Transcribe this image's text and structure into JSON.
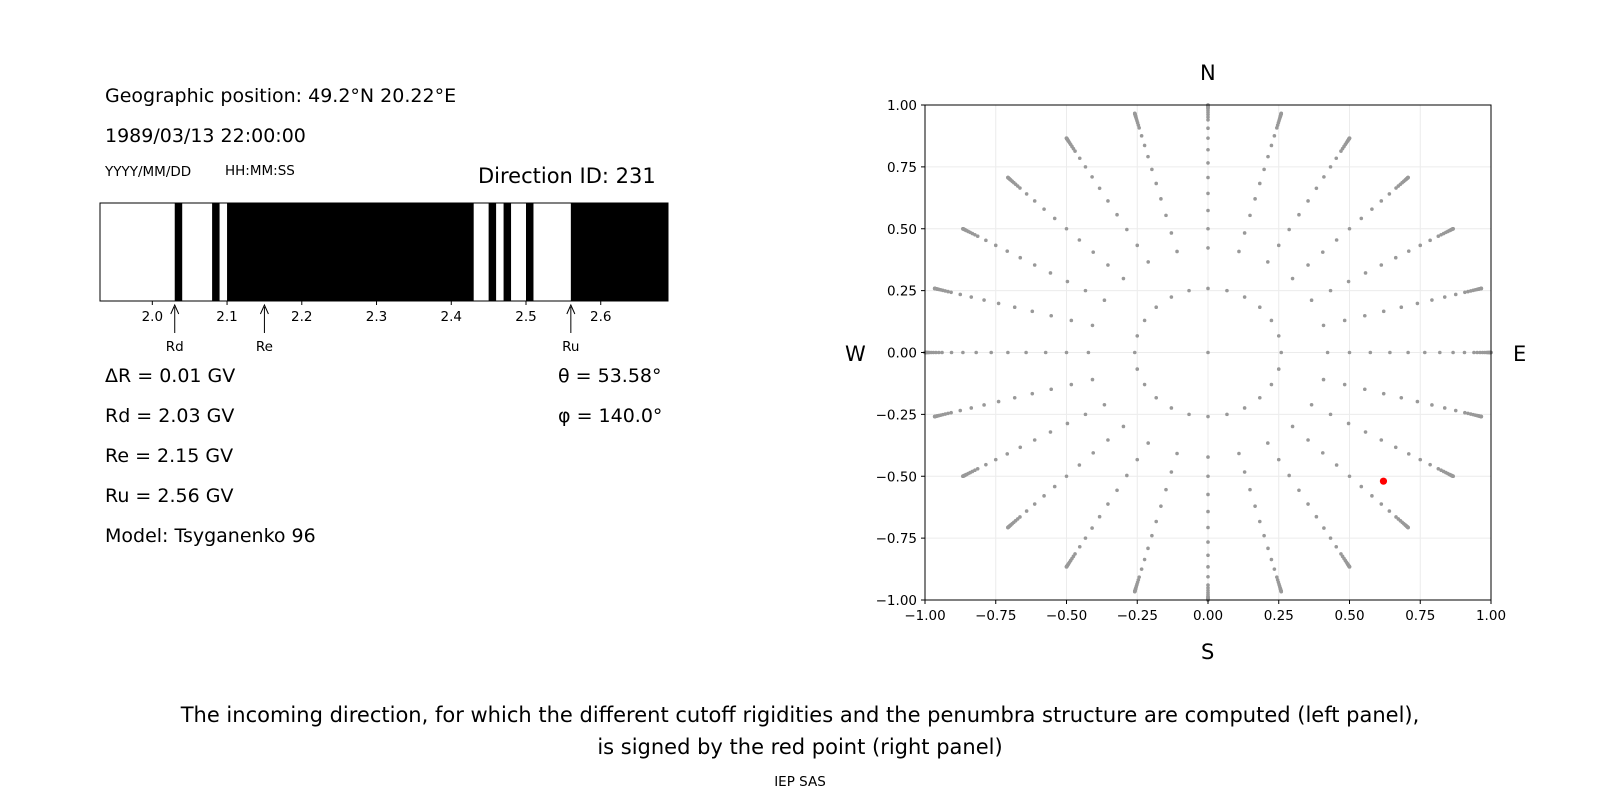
{
  "left_panel": {
    "geo_position": "Geographic position: 49.2°N 20.22°E",
    "datetime": "1989/03/13 22:00:00",
    "date_format": "YYYY/MM/DD",
    "time_format": "HH:MM:SS",
    "direction_id": "Direction ID: 231",
    "delta_r": "ΔR = 0.01 GV",
    "rd": "Rd = 2.03 GV",
    "re": "Re = 2.15 GV",
    "ru": "Ru = 2.56 GV",
    "model": "Model: Tsyganenko 96",
    "theta": "θ = 53.58°",
    "phi": "φ = 140.0°"
  },
  "right_panel": {
    "north": "N",
    "south": "S",
    "west": "W",
    "east": "E"
  },
  "caption_line1": "The incoming direction, for which the different cutoff rigidities and the penumbra structure are computed (left panel),",
  "caption_line2": "is signed by the red point (right panel)",
  "footer": "IEP SAS",
  "chart_data": [
    {
      "type": "bar",
      "description_free": true,
      "xlim": [
        1.93,
        2.69
      ],
      "xticks": [
        2.0,
        2.1,
        2.2,
        2.3,
        2.4,
        2.5,
        2.6
      ],
      "xtick_labels": [
        "2.0",
        "2.1",
        "2.2",
        "2.3",
        "2.4",
        "2.5",
        "2.6"
      ],
      "forbidden_bands": [
        [
          2.03,
          2.04
        ],
        [
          2.08,
          2.09
        ],
        [
          2.1,
          2.43
        ],
        [
          2.45,
          2.46
        ],
        [
          2.47,
          2.48
        ],
        [
          2.5,
          2.51
        ],
        [
          2.56,
          2.69
        ]
      ],
      "band_color": "#000000",
      "markers": [
        {
          "label": "Rd",
          "value": 2.03
        },
        {
          "label": "Re",
          "value": 2.15
        },
        {
          "label": "Ru",
          "value": 2.56
        }
      ]
    },
    {
      "type": "scatter",
      "xlim": [
        -1.0,
        1.0
      ],
      "ylim": [
        -1.0,
        1.0
      ],
      "xticks": [
        -1.0,
        -0.75,
        -0.5,
        -0.25,
        0.0,
        0.25,
        0.5,
        0.75,
        1.0
      ],
      "xtick_labels": [
        "−1.00",
        "−0.75",
        "−0.50",
        "−0.25",
        "0.00",
        "0.25",
        "0.50",
        "0.75",
        "1.00"
      ],
      "yticks": [
        1.0,
        0.75,
        0.5,
        0.25,
        0.0,
        -0.25,
        -0.5,
        -0.75,
        -1.0
      ],
      "ytick_labels": [
        "1.00",
        "0.75",
        "0.50",
        "0.25",
        "0.00",
        "−0.25",
        "−0.50",
        "−0.75",
        "−1.00"
      ],
      "grid": true,
      "direction_grid": {
        "azimuth_step_deg": 15,
        "zenith_angles_deg": [
          0,
          15,
          25,
          30,
          35,
          40,
          45,
          50,
          55,
          60,
          65,
          70,
          72,
          74,
          76,
          78,
          80,
          81,
          82,
          83,
          84,
          85,
          86,
          87,
          88,
          89,
          90
        ],
        "color": "#999999"
      },
      "highlighted_point": {
        "x": 0.62,
        "y": -0.52,
        "color": "#ff0000"
      }
    }
  ]
}
